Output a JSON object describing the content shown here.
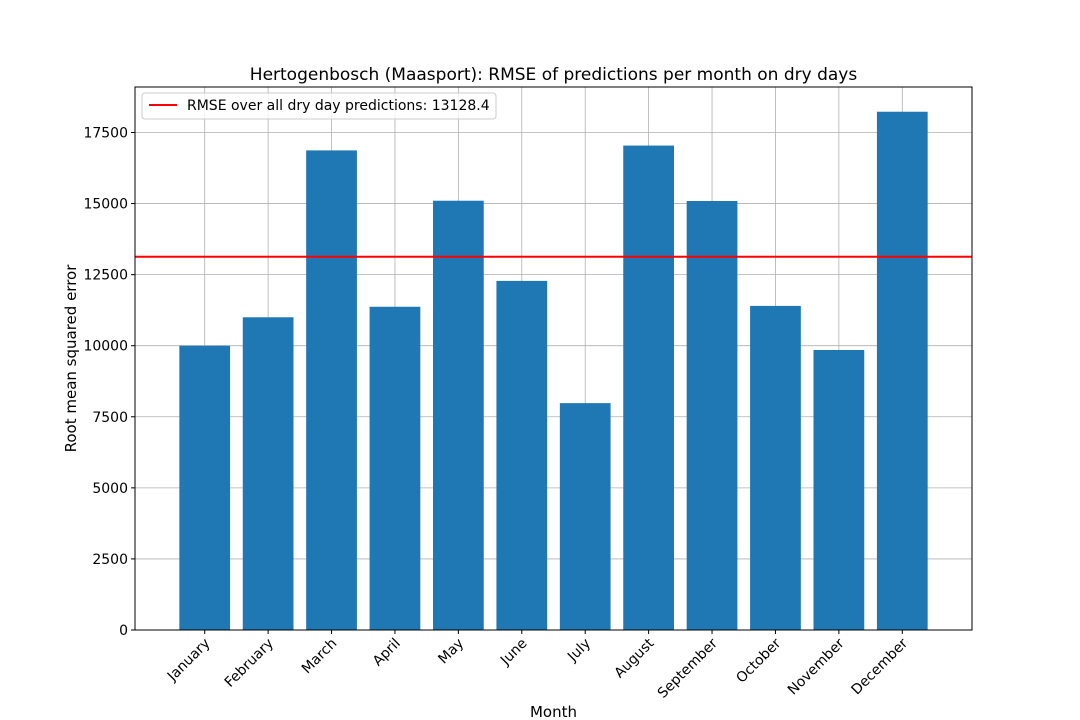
{
  "chart_data": {
    "type": "bar",
    "title": "Hertogenbosch (Maasport): RMSE of predictions per month on dry days",
    "xlabel": "Month",
    "ylabel": "Root mean squared error",
    "categories": [
      "January",
      "February",
      "March",
      "April",
      "May",
      "June",
      "July",
      "August",
      "September",
      "October",
      "November",
      "December"
    ],
    "values": [
      10000,
      11000,
      16870,
      11370,
      15100,
      12280,
      7980,
      17040,
      15090,
      11400,
      9850,
      18230
    ],
    "ylim": [
      0,
      19100
    ],
    "yticks": [
      0,
      2500,
      5000,
      7500,
      10000,
      12500,
      15000,
      17500
    ],
    "ytick_labels": [
      "0",
      "2500",
      "5000",
      "7500",
      "10000",
      "12500",
      "15000",
      "17500"
    ],
    "reference_line": {
      "value": 13128.4,
      "label": "RMSE over all dry day predictions: 13128.4",
      "color": "#ff0000"
    },
    "bar_color": "#1f77b4",
    "grid": true,
    "legend_position": "top-left"
  }
}
